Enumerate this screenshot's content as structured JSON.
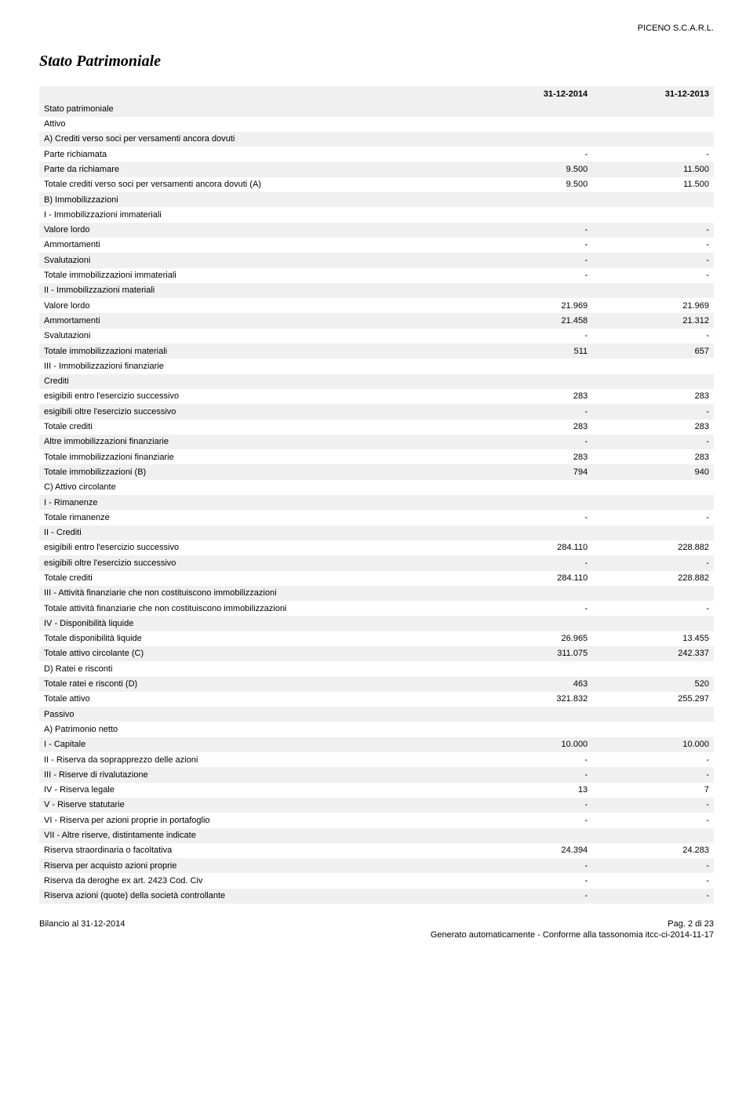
{
  "header": {
    "company": "PICENO S.C.A.R.L."
  },
  "title": "Stato Patrimoniale",
  "columns": {
    "c1": "31-12-2014",
    "c2": "31-12-2013"
  },
  "rows": [
    {
      "label": "Stato patrimoniale",
      "v1": "",
      "v2": "",
      "indent": 0,
      "shade": true
    },
    {
      "label": "Attivo",
      "v1": "",
      "v2": "",
      "indent": 1,
      "shade": false
    },
    {
      "label": "A) Crediti verso soci per versamenti ancora dovuti",
      "v1": "",
      "v2": "",
      "indent": 2,
      "shade": true
    },
    {
      "label": "Parte richiamata",
      "v1": "-",
      "v2": "-",
      "indent": 3,
      "shade": false
    },
    {
      "label": "Parte da richiamare",
      "v1": "9.500",
      "v2": "11.500",
      "indent": 3,
      "shade": true
    },
    {
      "label": "Totale crediti verso soci per versamenti ancora dovuti (A)",
      "v1": "9.500",
      "v2": "11.500",
      "indent": 3,
      "shade": false
    },
    {
      "label": "B) Immobilizzazioni",
      "v1": "",
      "v2": "",
      "indent": 2,
      "shade": true
    },
    {
      "label": "I - Immobilizzazioni immateriali",
      "v1": "",
      "v2": "",
      "indent": 3,
      "shade": false
    },
    {
      "label": "Valore lordo",
      "v1": "-",
      "v2": "-",
      "indent": 4,
      "shade": true
    },
    {
      "label": "Ammortamenti",
      "v1": "-",
      "v2": "-",
      "indent": 4,
      "shade": false
    },
    {
      "label": "Svalutazioni",
      "v1": "-",
      "v2": "-",
      "indent": 4,
      "shade": true
    },
    {
      "label": "Totale immobilizzazioni immateriali",
      "v1": "-",
      "v2": "-",
      "indent": 4,
      "shade": false
    },
    {
      "label": "II - Immobilizzazioni materiali",
      "v1": "",
      "v2": "",
      "indent": 3,
      "shade": true
    },
    {
      "label": "Valore lordo",
      "v1": "21.969",
      "v2": "21.969",
      "indent": 4,
      "shade": false
    },
    {
      "label": "Ammortamenti",
      "v1": "21.458",
      "v2": "21.312",
      "indent": 4,
      "shade": true
    },
    {
      "label": "Svalutazioni",
      "v1": "-",
      "v2": "-",
      "indent": 4,
      "shade": false
    },
    {
      "label": "Totale immobilizzazioni materiali",
      "v1": "511",
      "v2": "657",
      "indent": 4,
      "shade": true
    },
    {
      "label": "III - Immobilizzazioni finanziarie",
      "v1": "",
      "v2": "",
      "indent": 3,
      "shade": false
    },
    {
      "label": "Crediti",
      "v1": "",
      "v2": "",
      "indent": 4,
      "shade": true
    },
    {
      "label": "esigibili entro l'esercizio successivo",
      "v1": "283",
      "v2": "283",
      "indent": 5,
      "shade": false
    },
    {
      "label": "esigibili oltre l'esercizio successivo",
      "v1": "-",
      "v2": "-",
      "indent": 5,
      "shade": true
    },
    {
      "label": "Totale crediti",
      "v1": "283",
      "v2": "283",
      "indent": 5,
      "shade": false
    },
    {
      "label": "Altre immobilizzazioni finanziarie",
      "v1": "-",
      "v2": "-",
      "indent": 4,
      "shade": true
    },
    {
      "label": "Totale immobilizzazioni finanziarie",
      "v1": "283",
      "v2": "283",
      "indent": 4,
      "shade": false
    },
    {
      "label": "Totale immobilizzazioni (B)",
      "v1": "794",
      "v2": "940",
      "indent": 3,
      "shade": true
    },
    {
      "label": "C) Attivo circolante",
      "v1": "",
      "v2": "",
      "indent": 2,
      "shade": false
    },
    {
      "label": "I - Rimanenze",
      "v1": "",
      "v2": "",
      "indent": 3,
      "shade": true
    },
    {
      "label": "Totale rimanenze",
      "v1": "-",
      "v2": "-",
      "indent": 4,
      "shade": false
    },
    {
      "label": "II - Crediti",
      "v1": "",
      "v2": "",
      "indent": 3,
      "shade": true
    },
    {
      "label": "esigibili entro l'esercizio successivo",
      "v1": "284.110",
      "v2": "228.882",
      "indent": 4,
      "shade": false
    },
    {
      "label": "esigibili oltre l'esercizio successivo",
      "v1": "-",
      "v2": "-",
      "indent": 4,
      "shade": true
    },
    {
      "label": "Totale crediti",
      "v1": "284.110",
      "v2": "228.882",
      "indent": 4,
      "shade": false
    },
    {
      "label": "III - Attività finanziarie che non costituiscono immobilizzazioni",
      "v1": "",
      "v2": "",
      "indent": 3,
      "shade": true
    },
    {
      "label": "Totale attività finanziarie che non costituiscono immobilizzazioni",
      "v1": "-",
      "v2": "-",
      "indent": 4,
      "shade": false
    },
    {
      "label": "IV - Disponibilità liquide",
      "v1": "",
      "v2": "",
      "indent": 3,
      "shade": true
    },
    {
      "label": "Totale disponibilità liquide",
      "v1": "26.965",
      "v2": "13.455",
      "indent": 4,
      "shade": false
    },
    {
      "label": "Totale attivo circolante (C)",
      "v1": "311.075",
      "v2": "242.337",
      "indent": 3,
      "shade": true
    },
    {
      "label": "D) Ratei e risconti",
      "v1": "",
      "v2": "",
      "indent": 2,
      "shade": false
    },
    {
      "label": "Totale ratei e risconti (D)",
      "v1": "463",
      "v2": "520",
      "indent": 3,
      "shade": true
    },
    {
      "label": "Totale attivo",
      "v1": "321.832",
      "v2": "255.297",
      "indent": 2,
      "shade": false
    },
    {
      "label": "Passivo",
      "v1": "",
      "v2": "",
      "indent": 1,
      "shade": true
    },
    {
      "label": "A) Patrimonio netto",
      "v1": "",
      "v2": "",
      "indent": 2,
      "shade": false
    },
    {
      "label": "I - Capitale",
      "v1": "10.000",
      "v2": "10.000",
      "indent": 3,
      "shade": true
    },
    {
      "label": "II - Riserva da soprapprezzo delle azioni",
      "v1": "-",
      "v2": "-",
      "indent": 3,
      "shade": false
    },
    {
      "label": "III - Riserve di rivalutazione",
      "v1": "-",
      "v2": "-",
      "indent": 3,
      "shade": true
    },
    {
      "label": "IV - Riserva legale",
      "v1": "13",
      "v2": "7",
      "indent": 3,
      "shade": false
    },
    {
      "label": "V - Riserve statutarie",
      "v1": "-",
      "v2": "-",
      "indent": 3,
      "shade": true
    },
    {
      "label": "VI - Riserva per azioni proprie in portafoglio",
      "v1": "-",
      "v2": "-",
      "indent": 3,
      "shade": false
    },
    {
      "label": "VII - Altre riserve, distintamente indicate",
      "v1": "",
      "v2": "",
      "indent": 3,
      "shade": true
    },
    {
      "label": "Riserva straordinaria o facoltativa",
      "v1": "24.394",
      "v2": "24.283",
      "indent": 4,
      "shade": false
    },
    {
      "label": "Riserva per acquisto azioni proprie",
      "v1": "-",
      "v2": "-",
      "indent": 4,
      "shade": true
    },
    {
      "label": "Riserva da deroghe ex art. 2423 Cod. Civ",
      "v1": "-",
      "v2": "-",
      "indent": 4,
      "shade": false
    },
    {
      "label": "Riserva azioni (quote) della società controllante",
      "v1": "-",
      "v2": "-",
      "indent": 4,
      "shade": true
    }
  ],
  "footer": {
    "left": "Bilancio al 31-12-2014",
    "right": "Pag. 2 di 23",
    "gen": "Generato automaticamente - Conforme alla tassonomia itcc-ci-2014-11-17"
  }
}
